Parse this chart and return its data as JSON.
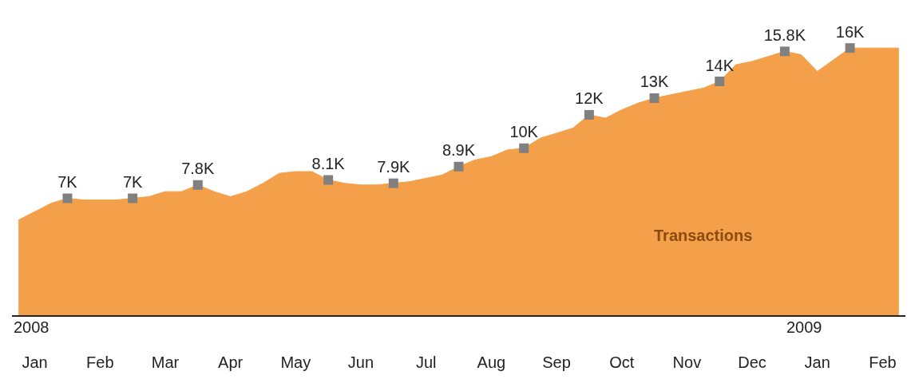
{
  "chart_data": {
    "type": "area",
    "categories": [
      null,
      "Jan",
      null,
      null,
      null,
      "Feb",
      null,
      null,
      null,
      "Mar",
      null,
      null,
      null,
      "Apr",
      null,
      null,
      null,
      "May",
      null,
      null,
      null,
      "Jun",
      null,
      null,
      null,
      "Jul",
      null,
      null,
      null,
      "Aug",
      null,
      null,
      null,
      "Sep",
      null,
      null,
      null,
      "Oct",
      null,
      null,
      null,
      "Nov",
      null,
      null,
      null,
      "Dec",
      null,
      null,
      null,
      "Jan",
      null,
      null,
      null,
      "Feb",
      null
    ],
    "tick_labels": "x",
    "series": [
      {
        "name": "Transactions",
        "color": "#f4a04a",
        "values": [
          5.7,
          6.2,
          6.7,
          7,
          6.9,
          6.9,
          6.9,
          7,
          7.1,
          7.4,
          7.4,
          7.8,
          7.4,
          7.1,
          7.4,
          7.9,
          8.5,
          8.6,
          8.6,
          8.1,
          7.9,
          7.8,
          7.8,
          7.9,
          8.0,
          8.2,
          8.4,
          8.9,
          9.3,
          9.5,
          9.9,
          10,
          10.6,
          10.9,
          11.2,
          12,
          11.8,
          12.3,
          12.7,
          13,
          13.2,
          13.4,
          13.6,
          14,
          15.0,
          15.2,
          15.5,
          15.8,
          15.6,
          14.6,
          15.3,
          16,
          16,
          16,
          16
        ],
        "value_labels": [
          null,
          null,
          null,
          "7K",
          null,
          null,
          null,
          "7K",
          null,
          null,
          null,
          "7.8K",
          null,
          null,
          null,
          null,
          null,
          null,
          null,
          "8.1K",
          null,
          null,
          null,
          "7.9K",
          null,
          null,
          null,
          "8.9K",
          null,
          null,
          null,
          "10K",
          null,
          null,
          null,
          "12K",
          null,
          null,
          null,
          "13K",
          null,
          null,
          null,
          "14K",
          null,
          null,
          null,
          "15.8K",
          null,
          null,
          null,
          "16K",
          null,
          null,
          null
        ]
      }
    ],
    "annotations": [
      "2008",
      "2009"
    ]
  }
}
